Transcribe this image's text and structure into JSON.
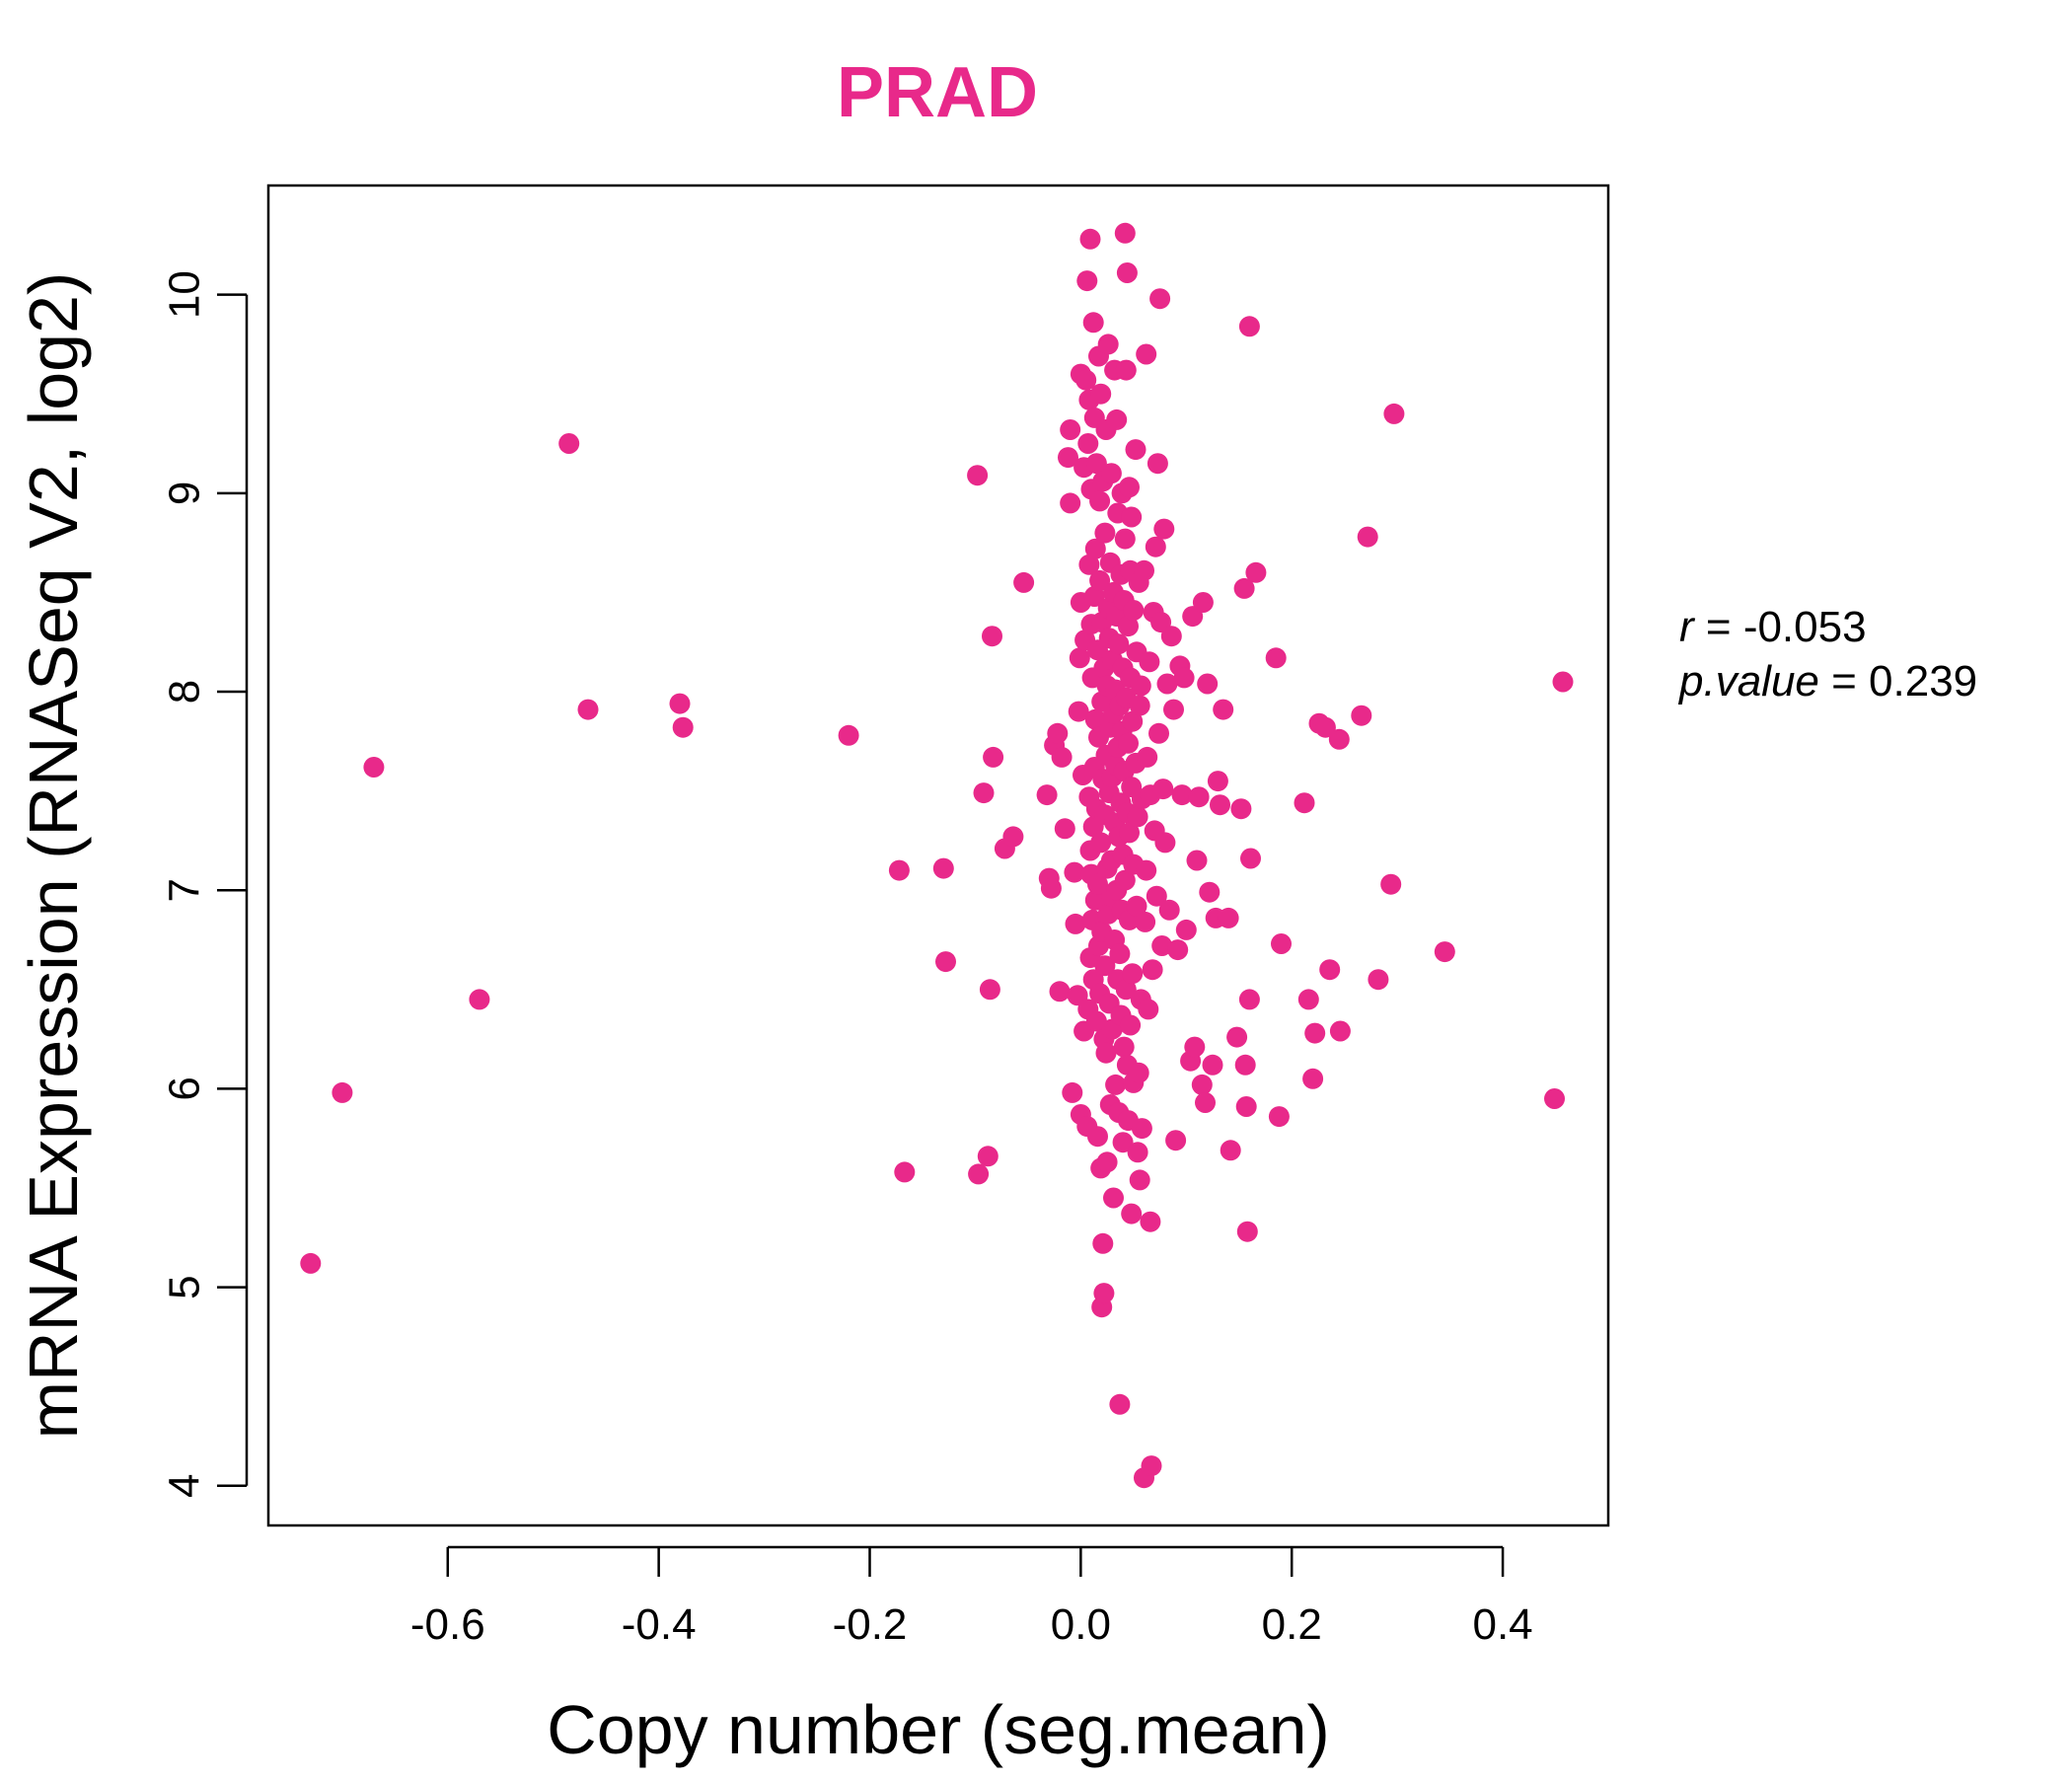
{
  "chart_data": {
    "type": "scatter",
    "title": "PRAD",
    "xlabel": "Copy number (seg.mean)",
    "ylabel": "mRNA Expression (RNASeq V2, log2)",
    "xlim": [
      -0.77,
      0.5
    ],
    "ylim": [
      3.8,
      10.55
    ],
    "xticks": [
      -0.6,
      -0.4,
      -0.2,
      0.0,
      0.2,
      0.4
    ],
    "xtick_labels": [
      "-0.6",
      "-0.4",
      "-0.2",
      "0.0",
      "0.2",
      "0.4"
    ],
    "yticks": [
      4,
      5,
      6,
      7,
      8,
      9,
      10
    ],
    "ytick_labels": [
      "4",
      "5",
      "6",
      "7",
      "8",
      "9",
      "10"
    ],
    "grid": false,
    "point_color": "#E8298A",
    "title_color": "#E8298A",
    "stats": {
      "r_label": "r",
      "r_value": "-0.053",
      "p_label": "p.value",
      "p_value": "0.239"
    },
    "points": [
      [
        -0.73,
        5.12
      ],
      [
        -0.7,
        5.98
      ],
      [
        -0.67,
        7.62
      ],
      [
        -0.57,
        6.45
      ],
      [
        -0.485,
        9.25
      ],
      [
        -0.467,
        7.91
      ],
      [
        -0.38,
        7.94
      ],
      [
        -0.377,
        7.82
      ],
      [
        -0.22,
        7.78
      ],
      [
        -0.172,
        7.1
      ],
      [
        -0.167,
        5.58
      ],
      [
        -0.13,
        7.11
      ],
      [
        -0.128,
        6.64
      ],
      [
        -0.098,
        9.09
      ],
      [
        -0.097,
        5.57
      ],
      [
        -0.092,
        7.49
      ],
      [
        -0.088,
        5.66
      ],
      [
        -0.086,
        6.5
      ],
      [
        -0.084,
        8.28
      ],
      [
        -0.083,
        7.67
      ],
      [
        -0.072,
        7.21
      ],
      [
        -0.064,
        7.27
      ],
      [
        -0.054,
        8.55
      ],
      [
        -0.032,
        7.48
      ],
      [
        -0.03,
        7.06
      ],
      [
        -0.028,
        7.01
      ],
      [
        -0.025,
        7.73
      ],
      [
        -0.022,
        7.79
      ],
      [
        -0.02,
        6.49
      ],
      [
        -0.018,
        7.67
      ],
      [
        -0.015,
        7.31
      ],
      [
        -0.012,
        9.18
      ],
      [
        -0.01,
        8.95
      ],
      [
        -0.01,
        9.32
      ],
      [
        -0.008,
        5.98
      ],
      [
        -0.006,
        7.09
      ],
      [
        -0.005,
        6.83
      ],
      [
        -0.003,
        6.47
      ],
      [
        -0.002,
        7.9
      ],
      [
        -0.001,
        8.17
      ],
      [
        0.0,
        9.6
      ],
      [
        0.0,
        8.45
      ],
      [
        0.0,
        5.87
      ],
      [
        0.002,
        7.58
      ],
      [
        0.003,
        9.13
      ],
      [
        0.003,
        6.29
      ],
      [
        0.004,
        8.26
      ],
      [
        0.005,
        9.57
      ],
      [
        0.006,
        5.81
      ],
      [
        0.006,
        10.07
      ],
      [
        0.007,
        6.4
      ],
      [
        0.007,
        9.25
      ],
      [
        0.008,
        7.47
      ],
      [
        0.008,
        8.64
      ],
      [
        0.008,
        9.47
      ],
      [
        0.009,
        10.28
      ],
      [
        0.009,
        6.66
      ],
      [
        0.009,
        7.2
      ],
      [
        0.01,
        8.34
      ],
      [
        0.01,
        7.08
      ],
      [
        0.01,
        9.02
      ],
      [
        0.011,
        6.85
      ],
      [
        0.011,
        8.07
      ],
      [
        0.012,
        7.32
      ],
      [
        0.012,
        9.86
      ],
      [
        0.012,
        6.55
      ],
      [
        0.013,
        7.62
      ],
      [
        0.013,
        8.48
      ],
      [
        0.013,
        9.38
      ],
      [
        0.014,
        6.95
      ],
      [
        0.014,
        7.86
      ],
      [
        0.014,
        8.72
      ],
      [
        0.015,
        6.34
      ],
      [
        0.015,
        7.41
      ],
      [
        0.015,
        9.15
      ],
      [
        0.016,
        8.21
      ],
      [
        0.016,
        7.03
      ],
      [
        0.016,
        5.76
      ],
      [
        0.017,
        9.69
      ],
      [
        0.017,
        6.72
      ],
      [
        0.017,
        7.77
      ],
      [
        0.018,
        8.56
      ],
      [
        0.018,
        6.48
      ],
      [
        0.018,
        8.96
      ],
      [
        0.019,
        7.24
      ],
      [
        0.019,
        9.5
      ],
      [
        0.019,
        5.6
      ],
      [
        0.02,
        7.95
      ],
      [
        0.02,
        6.79
      ],
      [
        0.02,
        8.35
      ],
      [
        0.02,
        4.9
      ],
      [
        0.021,
        7.56
      ],
      [
        0.021,
        9.06
      ],
      [
        0.021,
        5.22
      ],
      [
        0.022,
        6.25
      ],
      [
        0.022,
        8.12
      ],
      [
        0.022,
        4.97
      ],
      [
        0.023,
        7.38
      ],
      [
        0.023,
        8.8
      ],
      [
        0.023,
        6.62
      ],
      [
        0.024,
        7.68
      ],
      [
        0.024,
        9.32
      ],
      [
        0.024,
        6.18
      ],
      [
        0.025,
        8.03
      ],
      [
        0.025,
        7.11
      ],
      [
        0.025,
        5.63
      ],
      [
        0.026,
        8.42
      ],
      [
        0.026,
        6.88
      ],
      [
        0.026,
        9.75
      ],
      [
        0.027,
        7.49
      ],
      [
        0.027,
        6.43
      ],
      [
        0.027,
        8.27
      ],
      [
        0.028,
        7.82
      ],
      [
        0.028,
        5.92
      ],
      [
        0.028,
        8.65
      ],
      [
        0.029,
        7.15
      ],
      [
        0.029,
        6.97
      ],
      [
        0.029,
        9.1
      ],
      [
        0.03,
        8.16
      ],
      [
        0.03,
        7.57
      ],
      [
        0.03,
        6.3
      ],
      [
        0.031,
        7.89
      ],
      [
        0.031,
        5.45
      ],
      [
        0.031,
        8.5
      ],
      [
        0.032,
        7.34
      ],
      [
        0.032,
        6.75
      ],
      [
        0.032,
        9.62
      ],
      [
        0.033,
        8.01
      ],
      [
        0.033,
        6.02
      ],
      [
        0.033,
        7.63
      ],
      [
        0.034,
        8.38
      ],
      [
        0.034,
        7.0
      ],
      [
        0.034,
        9.37
      ],
      [
        0.035,
        7.72
      ],
      [
        0.035,
        6.55
      ],
      [
        0.035,
        8.9
      ],
      [
        0.036,
        7.27
      ],
      [
        0.036,
        5.88
      ],
      [
        0.036,
        8.24
      ],
      [
        0.037,
        7.93
      ],
      [
        0.037,
        6.68
      ],
      [
        0.037,
        4.41
      ],
      [
        0.038,
        7.44
      ],
      [
        0.038,
        8.59
      ],
      [
        0.038,
        6.37
      ],
      [
        0.039,
        7.8
      ],
      [
        0.039,
        9.0
      ],
      [
        0.039,
        6.9
      ],
      [
        0.04,
        8.12
      ],
      [
        0.04,
        7.18
      ],
      [
        0.04,
        5.73
      ],
      [
        0.041,
        7.6
      ],
      [
        0.041,
        8.46
      ],
      [
        0.041,
        6.21
      ],
      [
        0.042,
        10.31
      ],
      [
        0.042,
        7.05
      ],
      [
        0.042,
        8.77
      ],
      [
        0.043,
        7.97
      ],
      [
        0.043,
        6.5
      ],
      [
        0.043,
        9.62
      ],
      [
        0.044,
        10.11
      ],
      [
        0.044,
        7.39
      ],
      [
        0.044,
        6.12
      ],
      [
        0.045,
        8.33
      ],
      [
        0.045,
        7.74
      ],
      [
        0.045,
        5.84
      ],
      [
        0.046,
        9.03
      ],
      [
        0.046,
        6.85
      ],
      [
        0.046,
        7.29
      ],
      [
        0.047,
        8.07
      ],
      [
        0.047,
        6.32
      ],
      [
        0.047,
        8.61
      ],
      [
        0.048,
        7.52
      ],
      [
        0.048,
        5.37
      ],
      [
        0.048,
        8.88
      ],
      [
        0.049,
        7.85
      ],
      [
        0.049,
        6.58
      ],
      [
        0.05,
        8.41
      ],
      [
        0.05,
        7.13
      ],
      [
        0.05,
        6.03
      ],
      [
        0.052,
        9.22
      ],
      [
        0.052,
        7.64
      ],
      [
        0.053,
        8.2
      ],
      [
        0.053,
        6.92
      ],
      [
        0.054,
        5.68
      ],
      [
        0.054,
        7.37
      ],
      [
        0.055,
        8.55
      ],
      [
        0.055,
        6.08
      ],
      [
        0.056,
        5.54
      ],
      [
        0.056,
        7.93
      ],
      [
        0.057,
        8.03
      ],
      [
        0.057,
        6.45
      ],
      [
        0.058,
        7.46
      ],
      [
        0.058,
        5.8
      ],
      [
        0.06,
        4.04
      ],
      [
        0.06,
        8.61
      ],
      [
        0.061,
        6.84
      ],
      [
        0.062,
        9.7
      ],
      [
        0.062,
        7.1
      ],
      [
        0.063,
        7.67
      ],
      [
        0.064,
        6.4
      ],
      [
        0.065,
        8.15
      ],
      [
        0.066,
        5.33
      ],
      [
        0.066,
        7.48
      ],
      [
        0.067,
        4.1
      ],
      [
        0.068,
        6.6
      ],
      [
        0.069,
        8.4
      ],
      [
        0.07,
        7.3
      ],
      [
        0.071,
        8.73
      ],
      [
        0.072,
        6.97
      ],
      [
        0.073,
        9.15
      ],
      [
        0.074,
        7.79
      ],
      [
        0.075,
        9.98
      ],
      [
        0.076,
        8.35
      ],
      [
        0.077,
        6.72
      ],
      [
        0.078,
        7.51
      ],
      [
        0.079,
        8.82
      ],
      [
        0.08,
        7.24
      ],
      [
        0.082,
        8.04
      ],
      [
        0.084,
        6.9
      ],
      [
        0.086,
        8.28
      ],
      [
        0.088,
        7.91
      ],
      [
        0.09,
        5.74
      ],
      [
        0.092,
        6.7
      ],
      [
        0.094,
        8.13
      ],
      [
        0.096,
        7.48
      ],
      [
        0.098,
        8.07
      ],
      [
        0.1,
        6.8
      ],
      [
        0.104,
        6.14
      ],
      [
        0.106,
        8.38
      ],
      [
        0.108,
        6.21
      ],
      [
        0.11,
        7.15
      ],
      [
        0.112,
        7.47
      ],
      [
        0.115,
        6.02
      ],
      [
        0.116,
        8.45
      ],
      [
        0.118,
        5.93
      ],
      [
        0.12,
        8.04
      ],
      [
        0.122,
        6.99
      ],
      [
        0.125,
        6.12
      ],
      [
        0.128,
        6.86
      ],
      [
        0.13,
        7.55
      ],
      [
        0.132,
        7.43
      ],
      [
        0.135,
        7.91
      ],
      [
        0.14,
        6.86
      ],
      [
        0.142,
        5.69
      ],
      [
        0.148,
        6.26
      ],
      [
        0.152,
        7.41
      ],
      [
        0.155,
        8.52
      ],
      [
        0.156,
        6.12
      ],
      [
        0.157,
        5.91
      ],
      [
        0.158,
        5.28
      ],
      [
        0.16,
        9.84
      ],
      [
        0.16,
        6.45
      ],
      [
        0.161,
        7.16
      ],
      [
        0.166,
        8.6
      ],
      [
        0.185,
        8.17
      ],
      [
        0.188,
        5.86
      ],
      [
        0.19,
        6.73
      ],
      [
        0.212,
        7.44
      ],
      [
        0.216,
        6.45
      ],
      [
        0.22,
        6.05
      ],
      [
        0.222,
        6.28
      ],
      [
        0.226,
        7.84
      ],
      [
        0.232,
        7.82
      ],
      [
        0.236,
        6.6
      ],
      [
        0.245,
        7.76
      ],
      [
        0.246,
        6.29
      ],
      [
        0.266,
        7.88
      ],
      [
        0.272,
        8.78
      ],
      [
        0.282,
        6.55
      ],
      [
        0.294,
        7.03
      ],
      [
        0.297,
        9.4
      ],
      [
        0.345,
        6.69
      ],
      [
        0.449,
        5.95
      ],
      [
        0.457,
        8.05
      ]
    ]
  }
}
